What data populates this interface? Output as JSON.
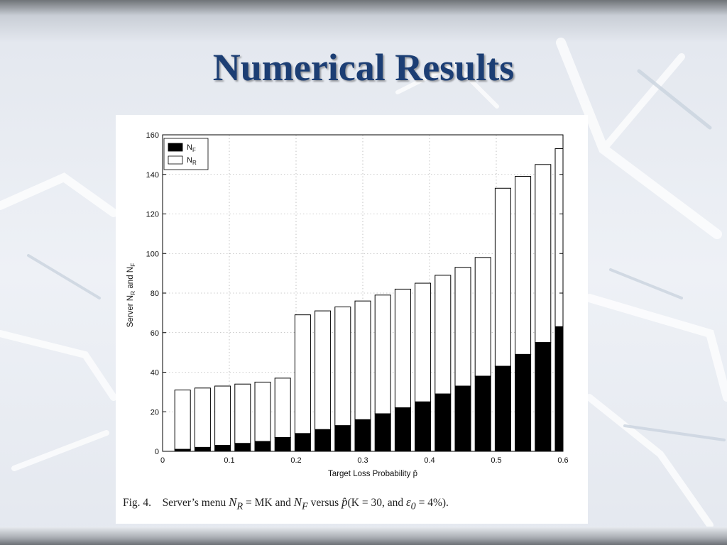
{
  "slide": {
    "title": "Numerical Results"
  },
  "colors": {
    "title": "#1c3e74",
    "nf_fill": "#000000",
    "nr_fill": "#ffffff",
    "bar_stroke": "#000000",
    "grid": "#9a9a9a"
  },
  "chart_data": {
    "type": "bar",
    "stacked": true,
    "x": [
      0.03,
      0.06,
      0.09,
      0.12,
      0.15,
      0.18,
      0.21,
      0.24,
      0.27,
      0.3,
      0.33,
      0.36,
      0.39,
      0.42,
      0.45,
      0.48,
      0.51,
      0.54,
      0.57,
      0.6
    ],
    "series": [
      {
        "name": "N_F",
        "legend": "N",
        "legend_sub": "F",
        "values": [
          1,
          2,
          3,
          4,
          5,
          7,
          9,
          11,
          13,
          16,
          19,
          22,
          25,
          29,
          33,
          38,
          43,
          49,
          55,
          63
        ]
      },
      {
        "name": "N_R",
        "legend": "N",
        "legend_sub": "R",
        "values": [
          30,
          30,
          30,
          30,
          30,
          30,
          60,
          60,
          60,
          60,
          60,
          60,
          60,
          60,
          60,
          60,
          90,
          90,
          90,
          90
        ]
      }
    ],
    "xlabel": "Target Loss Probability p̂",
    "ylabel": "Server N_R and N_F",
    "ylabel_parts": [
      "Server N",
      "R",
      " and N",
      "F"
    ],
    "xlim": [
      0,
      0.6
    ],
    "ylim": [
      0,
      160
    ],
    "xticks": [
      "0",
      "0.1",
      "0.2",
      "0.3",
      "0.4",
      "0.5",
      "0.6"
    ],
    "yticks": [
      "0",
      "20",
      "40",
      "60",
      "80",
      "100",
      "120",
      "140",
      "160"
    ],
    "grid": true,
    "legend_position": "top-left"
  },
  "caption": {
    "label": "Fig. 4.",
    "text1": "Server’s menu",
    "math1": "N",
    "math1_sub": "R",
    "text2": "= MK and",
    "math2": "N",
    "math2_sub": "F",
    "text3": "versus",
    "math3": "p̂",
    "text4": "(K = 30, and",
    "math4": "ε",
    "math4_sub": "0",
    "text5": "= 4%)."
  }
}
